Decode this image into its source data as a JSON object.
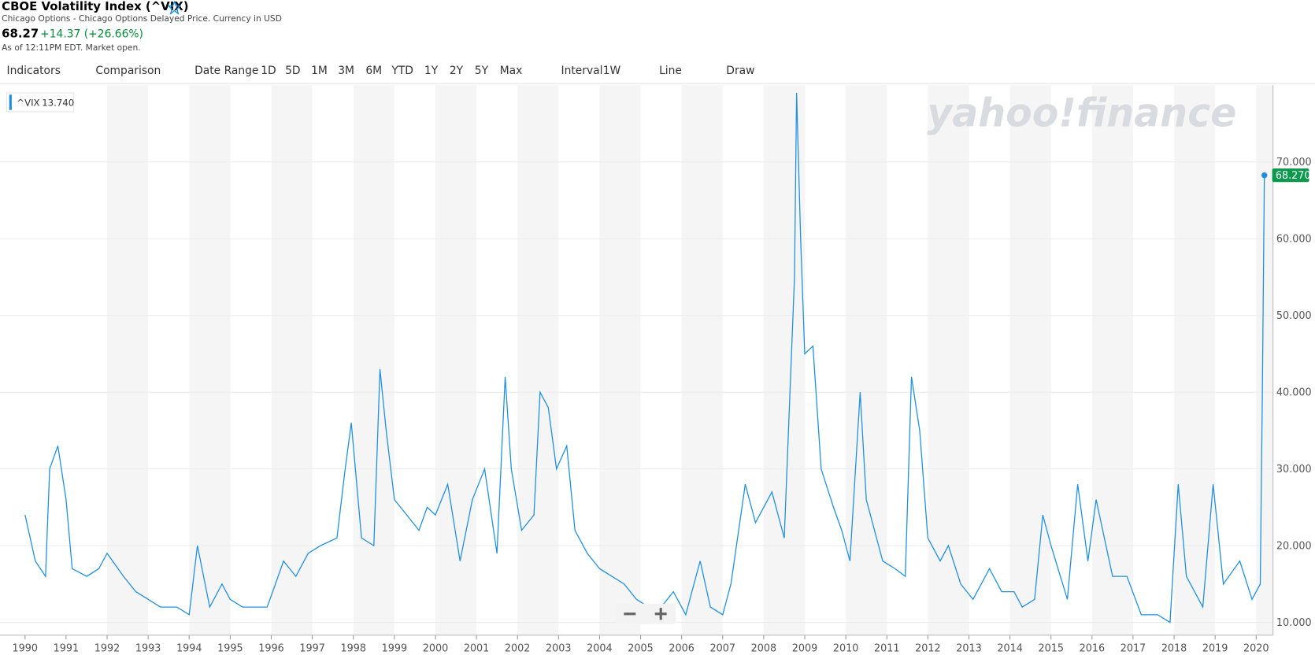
{
  "header": {
    "title": "CBOE Volatility Index (^VIX)",
    "subtitle": "Chicago Options - Chicago Options Delayed Price. Currency in USD",
    "price": "68.27",
    "change": "+14.37 (+26.66%)",
    "as_of": "As of 12:11PM EDT. Market open."
  },
  "toolbar": [
    "Indicators",
    "Comparison",
    "Date Range",
    "1D",
    "5D",
    "1M",
    "3M",
    "6M",
    "YTD",
    "1Y",
    "2Y",
    "5Y",
    "Max",
    "Interval",
    "1W",
    "Line",
    "Draw"
  ],
  "chart_data": {
    "type": "line",
    "watermark": "yahoo!finance",
    "legend_label": "^VIX",
    "legend_value": "13.740",
    "current_price": {
      "value": 68.27,
      "label": "68.270"
    },
    "grid": true,
    "color": "#1e8fe1",
    "x": [
      1990.0,
      1990.25,
      1990.5,
      1990.6,
      1990.8,
      1991.0,
      1991.15,
      1991.5,
      1991.8,
      1992.0,
      1992.4,
      1992.7,
      1993.0,
      1993.3,
      1993.7,
      1994.0,
      1994.2,
      1994.5,
      1994.8,
      1995.0,
      1995.3,
      1995.6,
      1995.9,
      1996.1,
      1996.3,
      1996.6,
      1996.9,
      1997.2,
      1997.6,
      1997.8,
      1997.95,
      1998.2,
      1998.5,
      1998.65,
      1998.8,
      1999.0,
      1999.3,
      1999.6,
      1999.8,
      2000.0,
      2000.3,
      2000.6,
      2000.9,
      2001.2,
      2001.5,
      2001.7,
      2001.85,
      2002.1,
      2002.4,
      2002.55,
      2002.75,
      2002.95,
      2003.2,
      2003.4,
      2003.7,
      2004.0,
      2004.3,
      2004.6,
      2004.9,
      2005.2,
      2005.5,
      2005.8,
      2006.1,
      2006.45,
      2006.7,
      2007.0,
      2007.2,
      2007.55,
      2007.8,
      2008.0,
      2008.2,
      2008.5,
      2008.75,
      2008.8,
      2008.9,
      2009.0,
      2009.2,
      2009.4,
      2009.7,
      2009.9,
      2010.1,
      2010.35,
      2010.5,
      2010.9,
      2011.2,
      2011.45,
      2011.6,
      2011.8,
      2012.0,
      2012.3,
      2012.5,
      2012.8,
      2013.1,
      2013.5,
      2013.8,
      2014.1,
      2014.3,
      2014.6,
      2014.8,
      2015.0,
      2015.4,
      2015.65,
      2015.9,
      2016.1,
      2016.5,
      2016.85,
      2017.2,
      2017.6,
      2017.9,
      2018.1,
      2018.3,
      2018.7,
      2018.95,
      2019.2,
      2019.6,
      2019.9,
      2020.1,
      2020.15,
      2020.2
    ],
    "values": [
      24,
      18,
      16,
      30,
      33,
      26,
      17,
      16,
      17,
      19,
      16,
      14,
      13,
      12,
      12,
      11,
      20,
      12,
      15,
      13,
      12,
      12,
      12,
      15,
      18,
      16,
      19,
      20,
      21,
      30,
      36,
      21,
      20,
      43,
      35,
      26,
      24,
      22,
      25,
      24,
      28,
      18,
      26,
      30,
      19,
      42,
      30,
      22,
      24,
      40,
      38,
      30,
      33,
      22,
      19,
      17,
      16,
      15,
      13,
      12,
      12,
      14,
      11,
      18,
      12,
      11,
      15,
      28,
      23,
      25,
      27,
      21,
      55,
      79,
      60,
      45,
      46,
      30,
      25,
      22,
      18,
      40,
      26,
      18,
      17,
      16,
      42,
      35,
      21,
      18,
      20,
      15,
      13,
      17,
      14,
      14,
      12,
      13,
      24,
      20,
      13,
      28,
      18,
      26,
      16,
      16,
      11,
      11,
      10,
      28,
      16,
      12,
      28,
      15,
      18,
      13,
      15,
      40,
      68.27
    ],
    "xlim": [
      1989.39,
      2020.41
    ],
    "ylim": [
      8.33,
      80
    ],
    "xticks": [
      1990,
      1991,
      1992,
      1993,
      1994,
      1995,
      1996,
      1997,
      1998,
      1999,
      2000,
      2001,
      2002,
      2003,
      2004,
      2005,
      2006,
      2007,
      2008,
      2009,
      2010,
      2011,
      2012,
      2013,
      2014,
      2015,
      2016,
      2017,
      2018,
      2019,
      2020
    ],
    "yticks": [
      {
        "value": 10,
        "label": "10.000"
      },
      {
        "value": 20,
        "label": "20.000"
      },
      {
        "value": 30,
        "label": "30.000"
      },
      {
        "value": 40,
        "label": "40.000"
      },
      {
        "value": 50,
        "label": "50.000"
      },
      {
        "value": 60,
        "label": "60.000"
      },
      {
        "value": 70,
        "label": "70.000"
      }
    ]
  }
}
